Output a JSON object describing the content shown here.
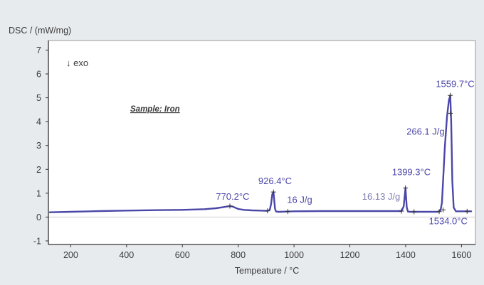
{
  "chart_data": {
    "type": "line",
    "title": "",
    "ylabel": "DSC / (mW/mg)",
    "xlabel": "Tempeature / °C",
    "xlim": [
      120,
      1650
    ],
    "ylim": [
      -1.15,
      7.4
    ],
    "x_ticks": [
      200,
      400,
      600,
      800,
      1000,
      1200,
      1400,
      1600
    ],
    "x_tick_labels": [
      "200",
      "400",
      "600",
      "800",
      "1000",
      "1200",
      "1400",
      "1600"
    ],
    "y_ticks": [
      -1,
      0,
      1,
      2,
      3,
      4,
      5,
      6,
      7
    ],
    "y_tick_labels": [
      "-1",
      "0",
      "1",
      "2",
      "3",
      "4",
      "5",
      "6",
      "7"
    ],
    "exo_note": "↓ exo",
    "sample_label": "Sample: Iron",
    "series": [
      {
        "color": "#4b47a8",
        "x": [
          125,
          200,
          300,
          400,
          500,
          600,
          680,
          720,
          745,
          760,
          770,
          780,
          790,
          800,
          820,
          850,
          880,
          905,
          913,
          918,
          922,
          926.4,
          929,
          932,
          935,
          940,
          950,
          970,
          1000,
          1100,
          1200,
          1300,
          1360,
          1385,
          1393,
          1397,
          1399.3,
          1401,
          1404,
          1408,
          1415,
          1440,
          1480,
          1510,
          1520,
          1525,
          1530,
          1534,
          1540,
          1548,
          1555,
          1559.7,
          1563,
          1567,
          1572,
          1580,
          1600,
          1620,
          1635
        ],
        "y": [
          0.2,
          0.22,
          0.25,
          0.27,
          0.29,
          0.3,
          0.33,
          0.37,
          0.41,
          0.44,
          0.46,
          0.44,
          0.39,
          0.34,
          0.3,
          0.28,
          0.27,
          0.26,
          0.3,
          0.55,
          0.95,
          1.05,
          0.7,
          0.35,
          0.24,
          0.22,
          0.22,
          0.23,
          0.24,
          0.25,
          0.25,
          0.25,
          0.25,
          0.25,
          0.45,
          0.95,
          1.22,
          0.9,
          0.4,
          0.23,
          0.22,
          0.22,
          0.22,
          0.22,
          0.23,
          0.3,
          0.6,
          1.5,
          2.9,
          4.2,
          4.9,
          5.1,
          4.0,
          1.5,
          0.4,
          0.24,
          0.24,
          0.24,
          0.24
        ]
      }
    ],
    "annotations": [
      {
        "text": "770.2°C",
        "color": "#4b47a8",
        "x": 720,
        "y": 0.72
      },
      {
        "text": "926.4°C",
        "color": "#4b47a8",
        "x": 872,
        "y": 1.38
      },
      {
        "text": "16 J/g",
        "color": "#4b47a8",
        "x": 975,
        "y": 0.6
      },
      {
        "text": "1399.3°C",
        "color": "#4b47a8",
        "x": 1351,
        "y": 1.75
      },
      {
        "text": "16.13 J/g",
        "color": "#7f7fb3",
        "x": 1244,
        "y": 0.73
      },
      {
        "text": "266.1 J/g",
        "color": "#4b47a8",
        "x": 1403,
        "y": 3.45
      },
      {
        "text": "1559.7°C",
        "color": "#4b47a8",
        "x": 1508,
        "y": 5.45
      },
      {
        "text": "1534.0°C",
        "color": "#4b47a8",
        "x": 1483,
        "y": -0.3
      }
    ],
    "markers": [
      {
        "x": 770.2,
        "y": 0.46
      },
      {
        "x": 926.4,
        "y": 1.05
      },
      {
        "x": 905,
        "y": 0.26
      },
      {
        "x": 978,
        "y": 0.23
      },
      {
        "x": 1399.3,
        "y": 1.22
      },
      {
        "x": 1385,
        "y": 0.25
      },
      {
        "x": 1430,
        "y": 0.22
      },
      {
        "x": 1559.7,
        "y": 5.1
      },
      {
        "x": 1560,
        "y": 4.35
      },
      {
        "x": 1520,
        "y": 0.23
      },
      {
        "x": 1534,
        "y": 0.3
      },
      {
        "x": 1620,
        "y": 0.24
      }
    ]
  }
}
